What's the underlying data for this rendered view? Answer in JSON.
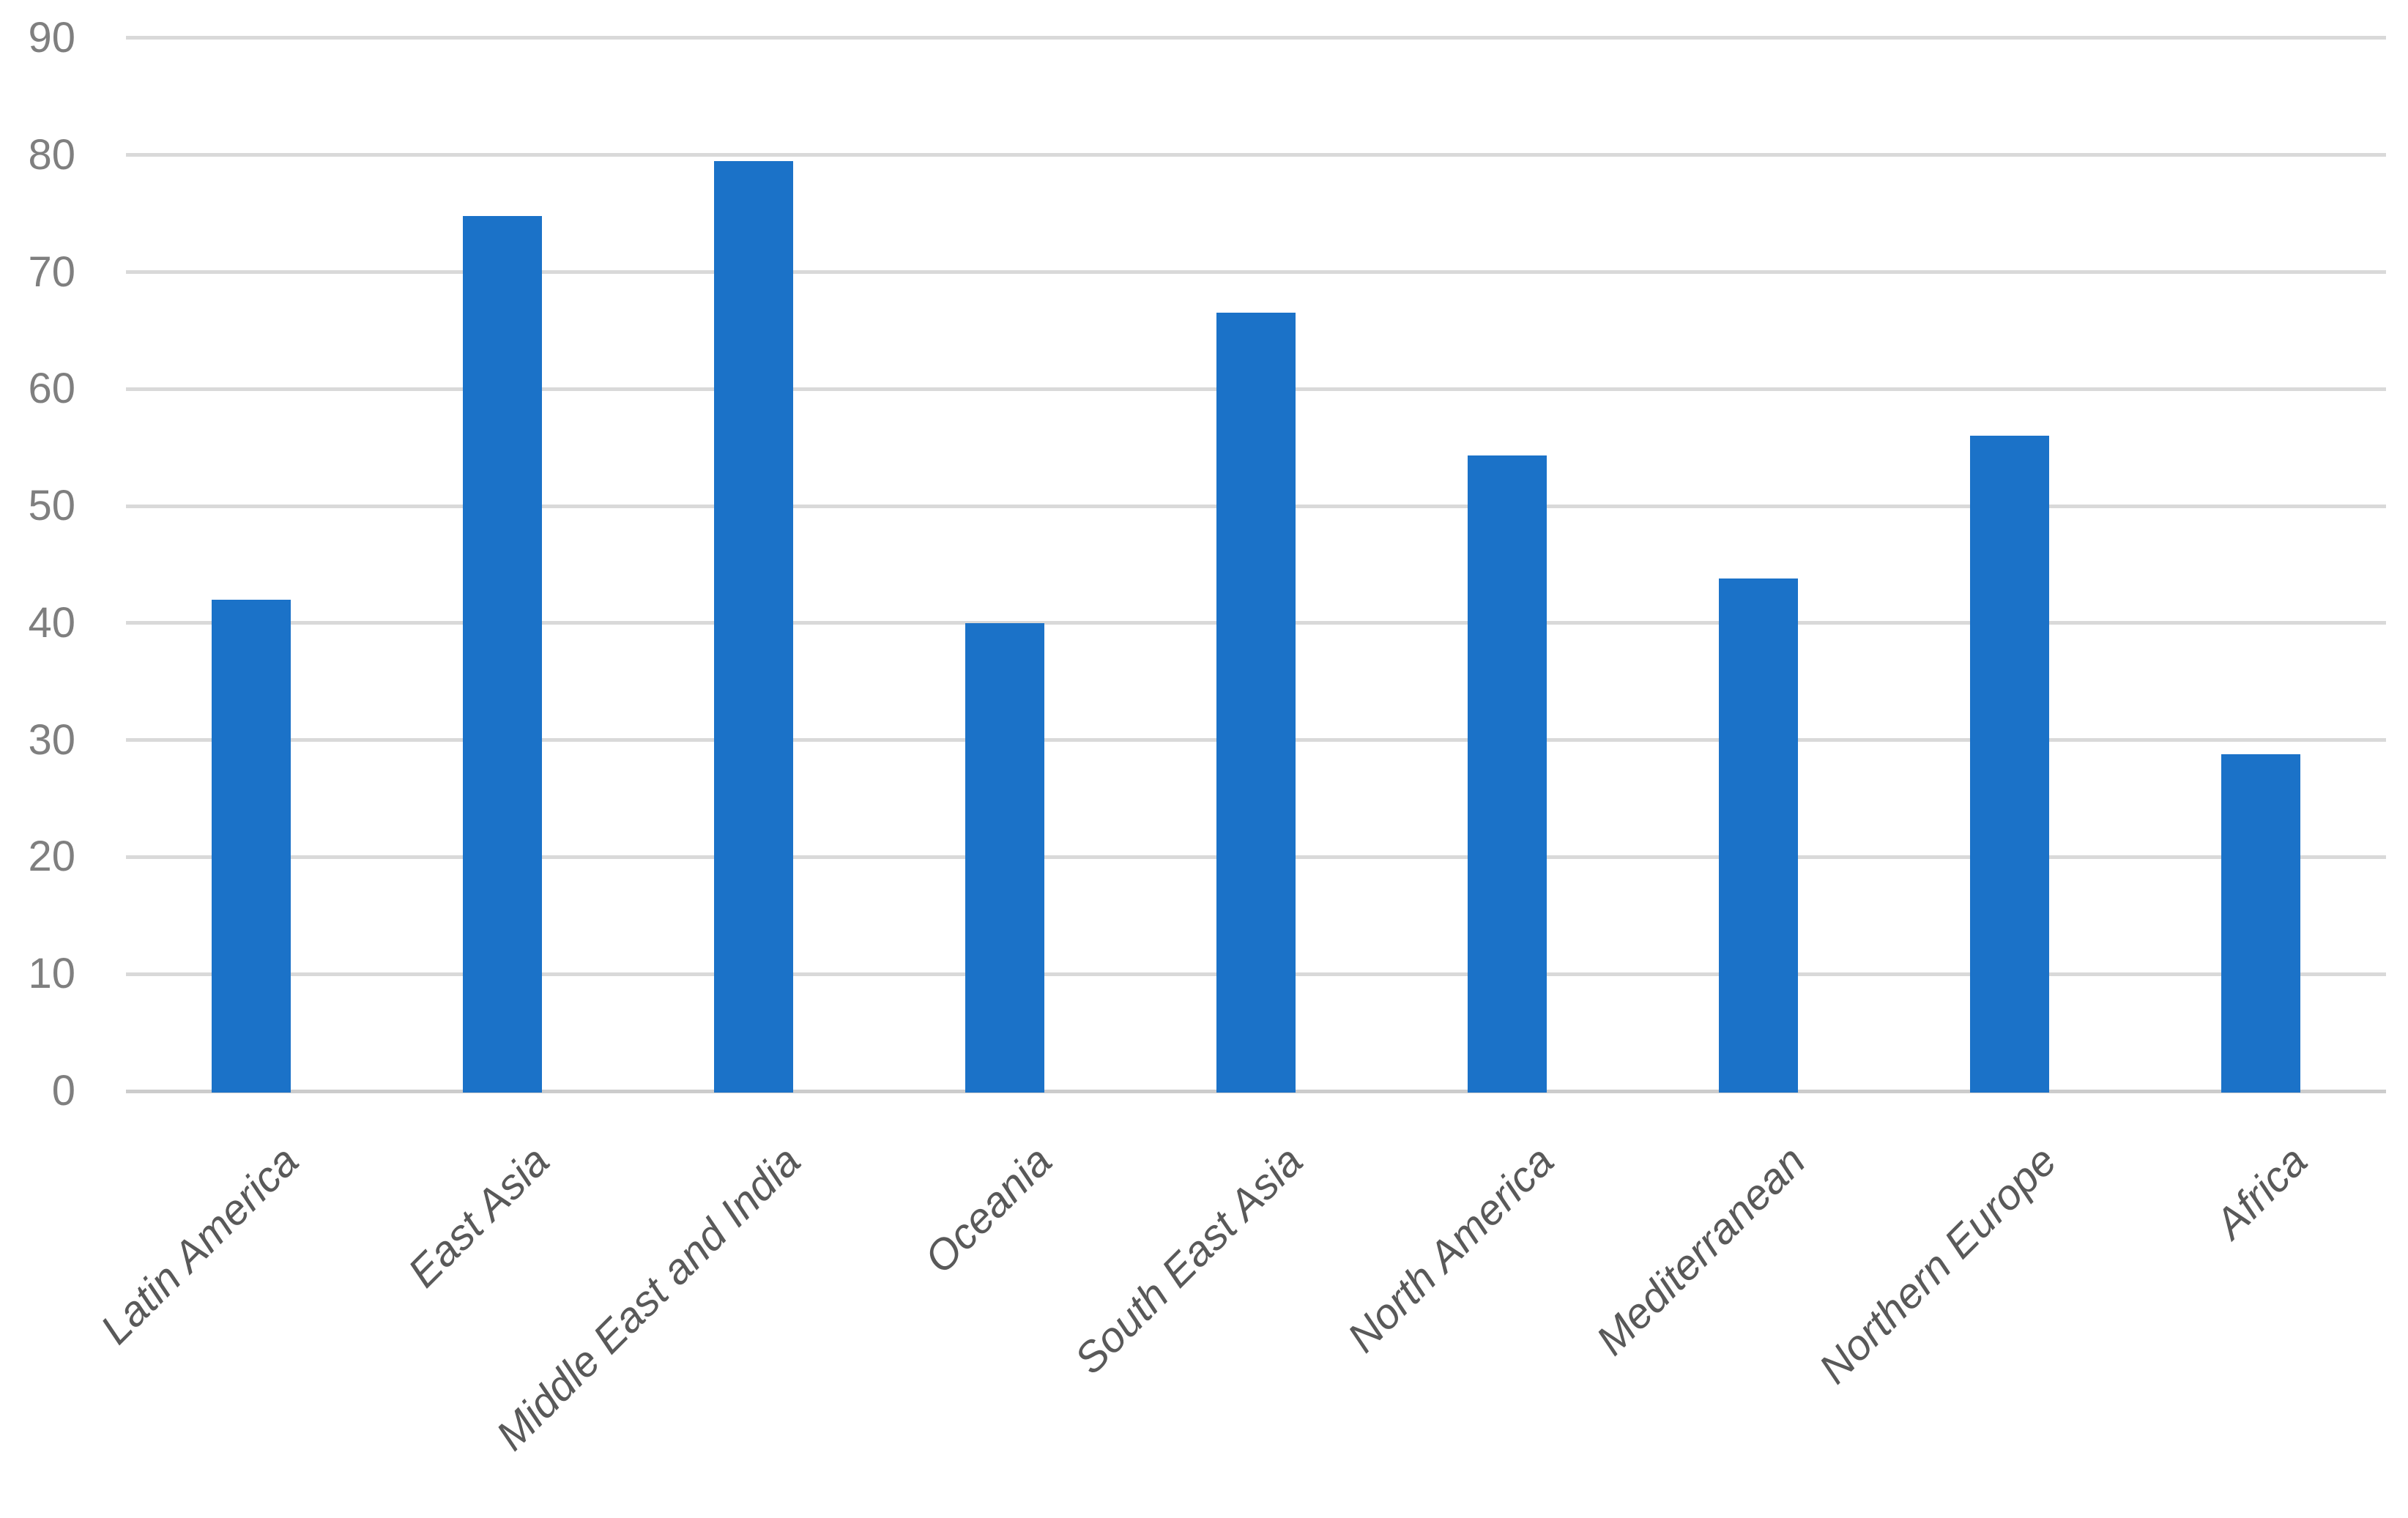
{
  "chart_data": {
    "type": "bar",
    "title": "",
    "xlabel": "",
    "ylabel": "",
    "categories": [
      "Latin America",
      "East Asia",
      "Middle East and India",
      "Oceania",
      "South East Asia",
      "North America",
      "Mediterranean",
      "Northern Europe",
      "Africa"
    ],
    "values": [
      42,
      74.8,
      79.5,
      40,
      66.5,
      54.3,
      43.8,
      56,
      28.8
    ],
    "y_tick_values": [
      0,
      10,
      20,
      30,
      40,
      50,
      60,
      70,
      80,
      90
    ],
    "y_tick_labels": [
      "0",
      "10",
      "20",
      "30",
      "40",
      "50",
      "60",
      "70",
      "80",
      "90"
    ],
    "ylim": [
      0,
      90
    ],
    "grid": "horizontal",
    "legend": "none",
    "colors": {
      "bar": "#1B72C8",
      "gridline": "#D9D9D9",
      "axis_line": "#CCCCCC",
      "y_label": "#7F7F7F",
      "x_label": "#595959",
      "background": "#FFFFFF"
    }
  }
}
